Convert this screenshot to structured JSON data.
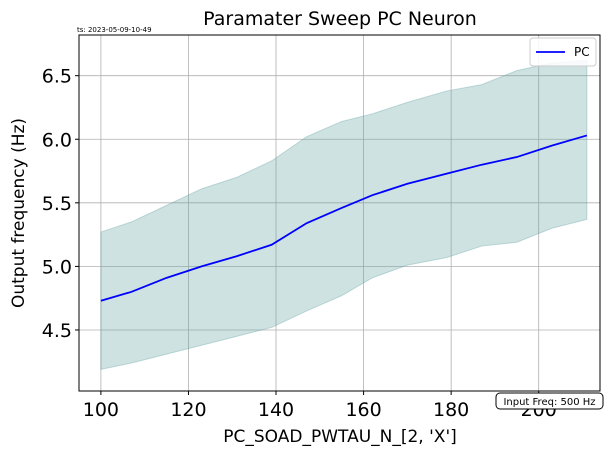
{
  "chart_data": {
    "type": "line",
    "title": "Paramater Sweep PC Neuron",
    "timestamp": "ts: 2023-05-09-10-49",
    "xlabel": "PC_SOAD_PWTAU_N_[2, 'X']",
    "ylabel": "Output frequency (Hz)",
    "xlim": [
      95,
      214
    ],
    "ylim": [
      4.02,
      6.82
    ],
    "xticks": [
      100,
      120,
      140,
      160,
      180,
      200
    ],
    "yticks": [
      4.5,
      5.0,
      5.5,
      6.0,
      6.5
    ],
    "grid": true,
    "legend_position": "top-right",
    "annotation": "Input Freq: 500 Hz",
    "x": [
      100,
      107,
      115,
      123,
      131,
      139,
      147,
      155,
      162,
      170,
      179,
      187,
      195,
      203,
      211
    ],
    "series": [
      {
        "name": "PC",
        "color": "#0000ff",
        "values": [
          4.73,
          4.8,
          4.91,
          5.0,
          5.08,
          5.17,
          5.34,
          5.46,
          5.56,
          5.65,
          5.73,
          5.8,
          5.86,
          5.95,
          6.03
        ]
      }
    ],
    "band": {
      "color": "#5f9ea0",
      "lower": [
        4.19,
        4.24,
        4.31,
        4.38,
        4.45,
        4.52,
        4.65,
        4.77,
        4.91,
        5.01,
        5.07,
        5.16,
        5.19,
        5.3,
        5.37
      ],
      "upper": [
        5.27,
        5.35,
        5.48,
        5.61,
        5.7,
        5.83,
        6.02,
        6.14,
        6.2,
        6.29,
        6.38,
        6.43,
        6.54,
        6.6,
        6.62
      ]
    }
  }
}
